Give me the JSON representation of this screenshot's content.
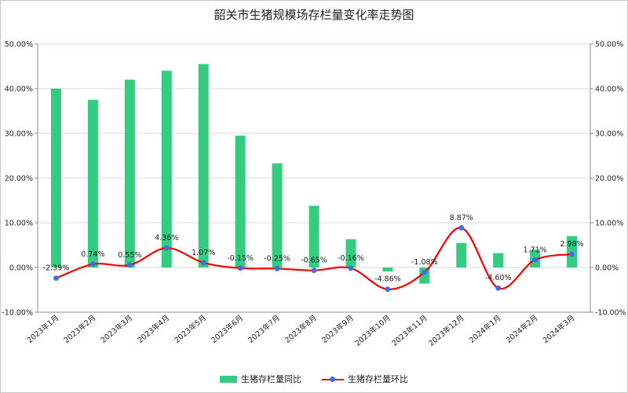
{
  "title": "韶关市生猪规模场存栏量变化率走势图",
  "colors": {
    "bar": "#33cc80",
    "line": "#ff0000",
    "marker": "#3a6ff0",
    "grid": "#d9d9d9",
    "axis": "#8c8c8c"
  },
  "chart_data": {
    "type": "bar+line",
    "title": "韶关市生猪规模场存栏量变化率走势图",
    "categories": [
      "2023年1月",
      "2023年2月",
      "2023年3月",
      "2023年4月",
      "2023年5月",
      "2023年6月",
      "2023年7月",
      "2023年8月",
      "2023年9月",
      "2023年10月",
      "2023年11月",
      "2023年12月",
      "2024年1月",
      "2024年2月",
      "2024年3月"
    ],
    "ylim": [
      -10,
      50
    ],
    "y_ticks": [
      "-10.00%",
      "0.00%",
      "10.00%",
      "20.00%",
      "30.00%",
      "40.00%",
      "50.00%"
    ],
    "grid": true,
    "legend_position": "bottom",
    "series": [
      {
        "name": "生猪存栏量同比",
        "type": "bar",
        "values": [
          40.0,
          37.5,
          42.0,
          44.0,
          45.5,
          29.5,
          23.3,
          13.8,
          6.3,
          -0.9,
          -3.6,
          5.5,
          3.2,
          4.0,
          7.0
        ]
      },
      {
        "name": "生猪存栏量环比",
        "type": "line",
        "values": [
          -2.39,
          0.74,
          0.55,
          4.36,
          1.07,
          -0.15,
          -0.25,
          -0.65,
          -0.16,
          -4.86,
          -1.08,
          8.87,
          -4.6,
          1.71,
          2.98
        ],
        "labels": [
          "-2.39%",
          "0.74%",
          "0.55%",
          "4.36%",
          "1.07%",
          "-0.15%",
          "-0.25%",
          "-0.65%",
          "-0.16%",
          "-4.86%",
          "-1.08%",
          "8.87%",
          "-4.60%",
          "1.71%",
          "2.98%"
        ]
      }
    ]
  }
}
